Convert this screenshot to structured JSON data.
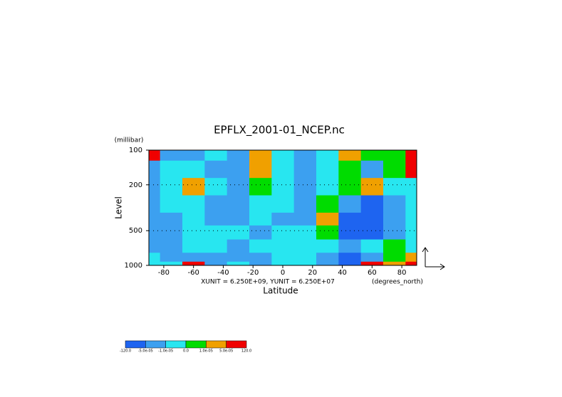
{
  "chart_data": {
    "type": "contour",
    "title": "EPFLX_2001-01_NCEP.nc",
    "y_unit_label": "(millibar)",
    "y_label": "Level",
    "x_label": "Latitude",
    "x_unit_label": "(degrees_north)",
    "vector_scale_label": "XUNIT = 6.250E+09, YUNIT = 6.250E+07",
    "x": [
      -90,
      -75,
      -60,
      -45,
      -30,
      -15,
      0,
      15,
      30,
      45,
      60,
      75,
      90
    ],
    "y": [
      1000,
      850,
      700,
      500,
      400,
      300,
      200,
      150,
      100
    ],
    "xlim": [
      -90,
      90
    ],
    "xticks": [
      -80,
      -60,
      -40,
      -20,
      0,
      20,
      40,
      60,
      80
    ],
    "ylim": [
      1000,
      100
    ],
    "yticks": [
      100,
      200,
      500,
      1000
    ],
    "y_scale": "log",
    "grid": true,
    "field": [
      [
        -5e-06,
        -5e-06,
        0.0001,
        -3e-05,
        -5e-06,
        -3e-05,
        -5e-06,
        -5e-06,
        -3e-05,
        -0.0001,
        0.0001,
        3e-05,
        0.0001
      ],
      [
        -5e-06,
        -3e-05,
        -3e-05,
        -3e-05,
        -3e-05,
        -3e-05,
        -5e-06,
        -5e-06,
        -3e-05,
        -0.0001,
        -3e-05,
        5e-06,
        3e-05
      ],
      [
        -3e-05,
        -3e-05,
        -5e-06,
        -5e-06,
        -3e-05,
        -5e-06,
        -5e-06,
        -5e-06,
        -5e-06,
        -3e-05,
        -5e-06,
        5e-06,
        -5e-06
      ],
      [
        -3e-05,
        -3e-05,
        -5e-06,
        -5e-06,
        -5e-06,
        -3e-05,
        -5e-06,
        -5e-06,
        5e-06,
        -0.0001,
        -0.0001,
        -3e-05,
        -5e-06
      ],
      [
        -3e-05,
        -3e-05,
        -5e-06,
        -3e-05,
        -3e-05,
        -5e-06,
        -3e-05,
        -3e-05,
        3e-05,
        -0.0001,
        -0.0001,
        -3e-05,
        -5e-06
      ],
      [
        -3e-05,
        -5e-06,
        -5e-06,
        -3e-05,
        -3e-05,
        -5e-06,
        -5e-06,
        -3e-05,
        5e-06,
        -3e-05,
        -0.0001,
        -3e-05,
        -5e-06
      ],
      [
        -3e-05,
        -5e-06,
        3e-05,
        -5e-06,
        -3e-05,
        5e-06,
        -5e-06,
        -3e-05,
        -5e-06,
        5e-06,
        3e-05,
        -5e-06,
        -5e-06
      ],
      [
        -3e-05,
        -5e-06,
        -5e-06,
        -3e-05,
        -3e-05,
        3e-05,
        -5e-06,
        -3e-05,
        -5e-06,
        5e-06,
        -3e-05,
        5e-06,
        0.0001
      ],
      [
        0.0001,
        -3e-05,
        -3e-05,
        -5e-06,
        -3e-05,
        3e-05,
        -5e-06,
        -3e-05,
        -5e-06,
        3e-05,
        5e-06,
        5e-06,
        0.0001
      ]
    ],
    "colorbar": {
      "levels": [
        {
          "value": -120,
          "label": "-120.0"
        },
        {
          "value": -5e-05,
          "label": "-5.0e-05"
        },
        {
          "value": -1e-05,
          "label": "-1.0e-05"
        },
        {
          "value": 0,
          "label": "0.0"
        },
        {
          "value": 1e-05,
          "label": "1.0e-05"
        },
        {
          "value": 5e-05,
          "label": "5.0e-05"
        },
        {
          "value": 120,
          "label": "120.0"
        }
      ],
      "colors": [
        "#1e64f0",
        "#3ca0f0",
        "#28e6f0",
        "#00dc00",
        "#f0a000",
        "#f00000"
      ]
    }
  }
}
